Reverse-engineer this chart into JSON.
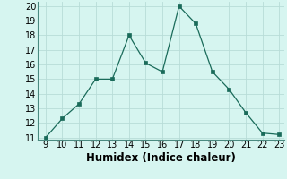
{
  "x": [
    9,
    10,
    11,
    12,
    13,
    14,
    15,
    16,
    17,
    18,
    19,
    20,
    21,
    22,
    23
  ],
  "y": [
    11.0,
    12.3,
    13.3,
    15.0,
    15.0,
    18.0,
    16.1,
    15.5,
    20.0,
    18.8,
    15.5,
    14.3,
    12.7,
    11.3,
    11.2
  ],
  "xlabel": "Humidex (Indice chaleur)",
  "ylim": [
    11,
    20
  ],
  "xlim": [
    9,
    23
  ],
  "yticks": [
    11,
    12,
    13,
    14,
    15,
    16,
    17,
    18,
    19,
    20
  ],
  "xticks": [
    9,
    10,
    11,
    12,
    13,
    14,
    15,
    16,
    17,
    18,
    19,
    20,
    21,
    22,
    23
  ],
  "line_color": "#1a6b5a",
  "marker_color": "#1a6b5a",
  "bg_color": "#d6f5f0",
  "grid_color": "#b8dcd8",
  "tick_label_fontsize": 7,
  "xlabel_fontsize": 8.5
}
